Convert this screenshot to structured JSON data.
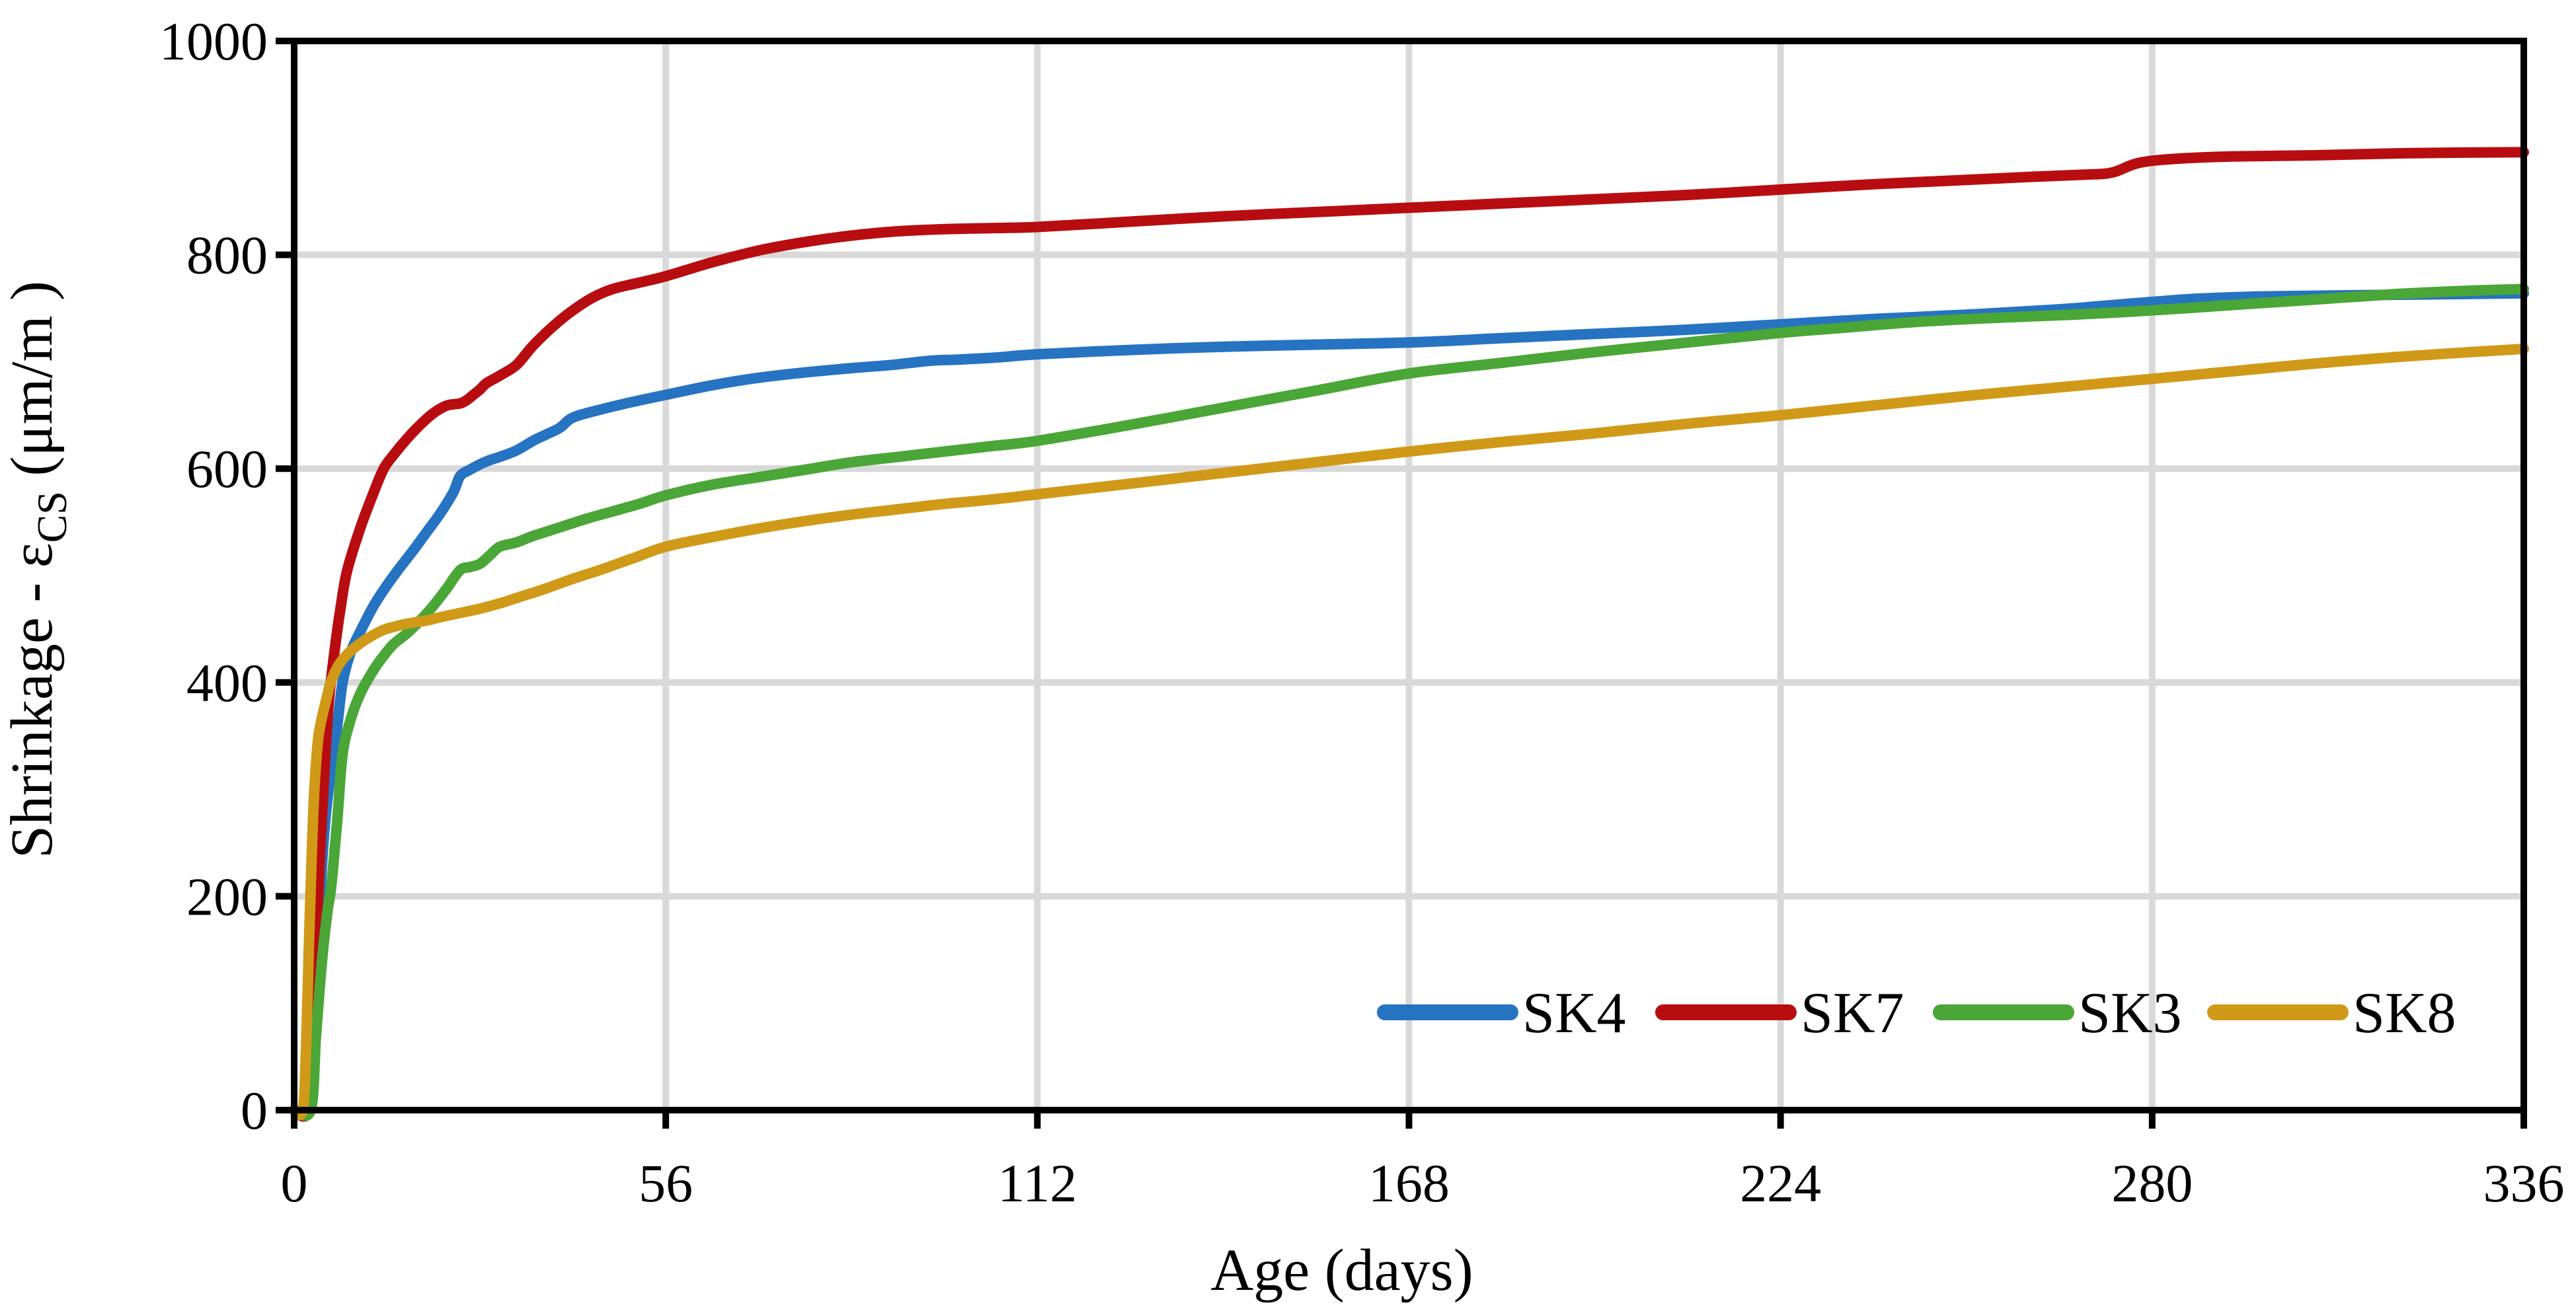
{
  "chart_data": {
    "type": "line",
    "title": "",
    "xlabel": "Age (days)",
    "ylabel_prefix": "Shrinkage - ε",
    "ylabel_sub": "CS",
    "ylabel_suffix": "  (μm/m )",
    "xlim": [
      0,
      336
    ],
    "ylim": [
      0,
      1000
    ],
    "x_ticks": [
      0,
      56,
      112,
      168,
      224,
      280,
      336
    ],
    "y_ticks": [
      0,
      200,
      400,
      600,
      800,
      1000
    ],
    "grid": true,
    "gridline_color": "#d9d9d9",
    "frame_color": "#000000",
    "legend_position": "inside-bottom-right",
    "series": [
      {
        "name": "SK4",
        "color": "#2673c2",
        "points": [
          [
            0,
            0
          ],
          [
            2.2,
            0
          ],
          [
            3,
            80
          ],
          [
            3.6,
            160
          ],
          [
            4.3,
            240
          ],
          [
            5,
            290
          ],
          [
            6,
            335
          ],
          [
            6.6,
            365
          ],
          [
            7.3,
            400
          ],
          [
            8.5,
            428
          ],
          [
            10,
            448
          ],
          [
            12,
            472
          ],
          [
            14,
            491
          ],
          [
            16,
            508
          ],
          [
            18,
            524
          ],
          [
            20,
            541
          ],
          [
            22,
            558
          ],
          [
            24,
            578
          ],
          [
            25,
            593
          ],
          [
            26.5,
            599
          ],
          [
            28,
            604
          ],
          [
            29.5,
            608
          ],
          [
            31,
            611
          ],
          [
            33.5,
            617
          ],
          [
            36,
            626
          ],
          [
            38,
            632
          ],
          [
            40,
            638
          ],
          [
            41.5,
            646
          ],
          [
            43,
            650
          ],
          [
            46,
            655
          ],
          [
            50,
            661
          ],
          [
            56,
            669
          ],
          [
            63,
            678
          ],
          [
            70,
            685
          ],
          [
            77,
            690
          ],
          [
            84,
            694
          ],
          [
            90,
            697
          ],
          [
            96,
            701
          ],
          [
            100,
            702
          ],
          [
            106,
            704
          ],
          [
            112,
            707
          ],
          [
            126,
            711
          ],
          [
            140,
            714
          ],
          [
            154,
            716
          ],
          [
            168,
            718
          ],
          [
            182,
            722
          ],
          [
            196,
            726
          ],
          [
            210,
            730
          ],
          [
            224,
            735
          ],
          [
            238,
            740
          ],
          [
            252,
            744
          ],
          [
            266,
            749
          ],
          [
            272,
            752
          ],
          [
            280,
            756
          ],
          [
            287,
            759
          ],
          [
            296,
            761
          ],
          [
            308,
            762
          ],
          [
            322,
            763
          ],
          [
            336,
            764
          ]
        ]
      },
      {
        "name": "SK7",
        "color": "#b80d10",
        "points": [
          [
            0,
            0
          ],
          [
            2,
            0
          ],
          [
            2.8,
            80
          ],
          [
            3.4,
            170
          ],
          [
            3.9,
            240
          ],
          [
            4.5,
            310
          ],
          [
            5.2,
            380
          ],
          [
            6,
            425
          ],
          [
            7,
            470
          ],
          [
            8,
            505
          ],
          [
            10,
            545
          ],
          [
            12,
            578
          ],
          [
            13.5,
            600
          ],
          [
            15,
            613
          ],
          [
            17,
            628
          ],
          [
            19,
            641
          ],
          [
            21,
            652
          ],
          [
            23,
            659
          ],
          [
            25,
            661
          ],
          [
            26,
            664
          ],
          [
            27,
            669
          ],
          [
            28,
            674
          ],
          [
            29,
            680
          ],
          [
            31,
            687
          ],
          [
            33.5,
            697
          ],
          [
            36,
            715
          ],
          [
            39,
            733
          ],
          [
            42,
            748
          ],
          [
            45,
            760
          ],
          [
            48,
            768
          ],
          [
            52,
            774
          ],
          [
            56,
            780
          ],
          [
            63,
            793
          ],
          [
            70,
            804
          ],
          [
            77,
            812
          ],
          [
            84,
            818
          ],
          [
            91,
            822
          ],
          [
            98,
            824
          ],
          [
            105,
            825
          ],
          [
            112,
            826
          ],
          [
            126,
            831
          ],
          [
            140,
            836
          ],
          [
            154,
            840
          ],
          [
            168,
            844
          ],
          [
            182,
            848
          ],
          [
            196,
            852
          ],
          [
            210,
            856
          ],
          [
            224,
            861
          ],
          [
            238,
            866
          ],
          [
            252,
            870
          ],
          [
            262,
            873
          ],
          [
            270,
            875
          ],
          [
            274,
            877
          ],
          [
            278,
            886
          ],
          [
            284,
            890
          ],
          [
            292,
            892
          ],
          [
            304,
            893
          ],
          [
            318,
            895
          ],
          [
            336,
            896
          ]
        ]
      },
      {
        "name": "SK3",
        "color": "#4aa636",
        "points": [
          [
            0,
            0
          ],
          [
            2.5,
            0
          ],
          [
            3.3,
            70
          ],
          [
            4.2,
            140
          ],
          [
            5,
            185
          ],
          [
            5.6,
            210
          ],
          [
            6.5,
            272
          ],
          [
            7.3,
            333
          ],
          [
            8.5,
            365
          ],
          [
            10,
            390
          ],
          [
            12,
            412
          ],
          [
            13.5,
            425
          ],
          [
            15,
            436
          ],
          [
            17,
            446
          ],
          [
            19,
            458
          ],
          [
            21,
            472
          ],
          [
            23,
            488
          ],
          [
            25,
            505
          ],
          [
            26.5,
            508
          ],
          [
            28,
            511
          ],
          [
            29.5,
            519
          ],
          [
            31,
            527
          ],
          [
            33.5,
            531
          ],
          [
            36,
            537
          ],
          [
            40,
            545
          ],
          [
            44,
            553
          ],
          [
            48,
            560
          ],
          [
            52,
            567
          ],
          [
            56,
            575
          ],
          [
            63,
            585
          ],
          [
            70,
            592
          ],
          [
            77,
            599
          ],
          [
            84,
            606
          ],
          [
            91,
            611
          ],
          [
            98,
            616
          ],
          [
            105,
            621
          ],
          [
            112,
            626
          ],
          [
            126,
            641
          ],
          [
            140,
            657
          ],
          [
            154,
            673
          ],
          [
            168,
            689
          ],
          [
            182,
            699
          ],
          [
            196,
            709
          ],
          [
            210,
            718
          ],
          [
            224,
            727
          ],
          [
            232,
            731
          ],
          [
            244,
            737
          ],
          [
            256,
            741
          ],
          [
            268,
            744
          ],
          [
            280,
            748
          ],
          [
            292,
            753
          ],
          [
            304,
            758
          ],
          [
            316,
            763
          ],
          [
            326,
            766
          ],
          [
            336,
            768
          ]
        ]
      },
      {
        "name": "SK8",
        "color": "#d09a18",
        "points": [
          [
            0,
            0
          ],
          [
            1.3,
            0
          ],
          [
            1.8,
            60
          ],
          [
            2.2,
            150
          ],
          [
            2.6,
            230
          ],
          [
            3,
            295
          ],
          [
            3.5,
            340
          ],
          [
            4,
            362
          ],
          [
            5,
            388
          ],
          [
            5.5,
            400
          ],
          [
            6.5,
            414
          ],
          [
            7.5,
            423
          ],
          [
            9,
            432
          ],
          [
            11,
            441
          ],
          [
            13.4,
            449
          ],
          [
            15,
            452
          ],
          [
            17,
            455
          ],
          [
            20,
            458
          ],
          [
            22,
            461
          ],
          [
            25,
            465
          ],
          [
            28,
            469
          ],
          [
            31,
            474
          ],
          [
            34,
            480
          ],
          [
            38,
            488
          ],
          [
            42,
            497
          ],
          [
            46,
            505
          ],
          [
            51,
            516
          ],
          [
            56,
            527
          ],
          [
            63,
            536
          ],
          [
            70,
            544
          ],
          [
            77,
            551
          ],
          [
            84,
            557
          ],
          [
            91,
            562
          ],
          [
            98,
            567
          ],
          [
            105,
            571
          ],
          [
            112,
            576
          ],
          [
            126,
            586
          ],
          [
            140,
            596
          ],
          [
            154,
            606
          ],
          [
            168,
            616
          ],
          [
            182,
            625
          ],
          [
            196,
            633
          ],
          [
            210,
            642
          ],
          [
            224,
            650
          ],
          [
            238,
            659
          ],
          [
            252,
            668
          ],
          [
            266,
            676
          ],
          [
            280,
            684
          ],
          [
            292,
            691
          ],
          [
            304,
            698
          ],
          [
            316,
            704
          ],
          [
            328,
            709
          ],
          [
            336,
            712
          ]
        ]
      }
    ],
    "legend": [
      {
        "label": "SK4",
        "color": "#2673c2"
      },
      {
        "label": "SK7",
        "color": "#b80d10"
      },
      {
        "label": "SK3",
        "color": "#4aa636"
      },
      {
        "label": "SK8",
        "color": "#d09a18"
      }
    ]
  }
}
